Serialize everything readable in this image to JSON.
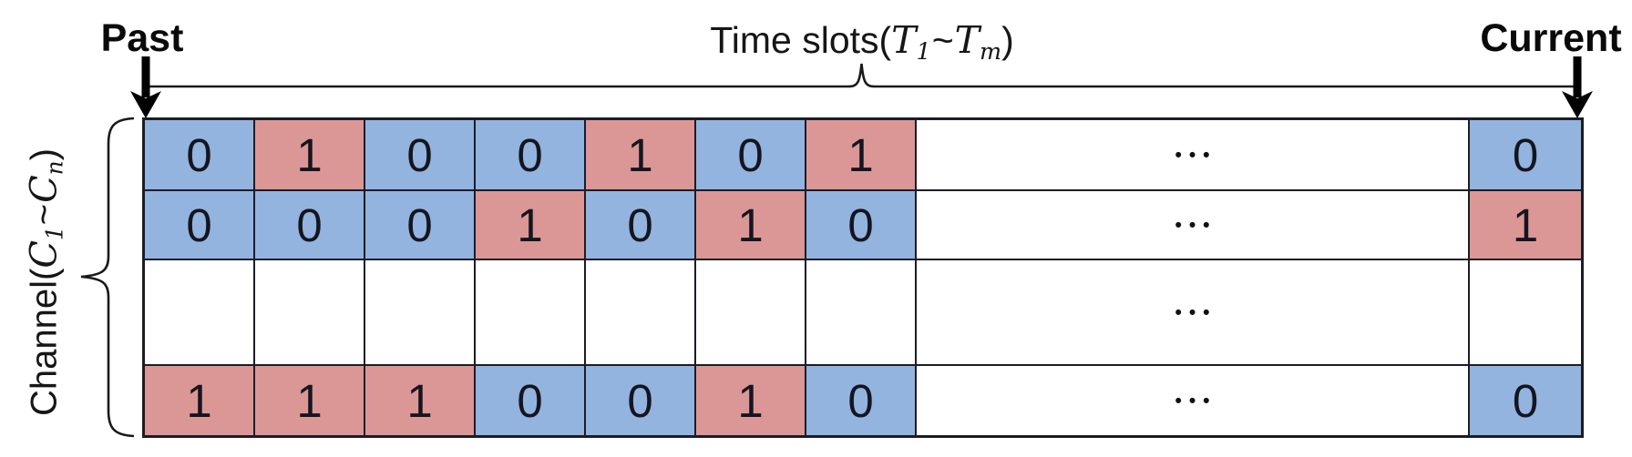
{
  "figure": {
    "past_label": "Past",
    "current_label": "Current",
    "time_axis": {
      "prefix": "Time slots(",
      "var1": "T",
      "sub1": "1",
      "tilde": "~",
      "var2": "T",
      "sub2": "m",
      "suffix": ")"
    },
    "channel_axis": {
      "prefix": "Channel(",
      "var1": "C",
      "sub1": "1",
      "tilde": "~",
      "var2": "C",
      "sub2": "n",
      "suffix": ")"
    }
  },
  "colors": {
    "idle": "#92b4df",
    "busy": "#db9795",
    "border": "#1c1c26",
    "digit": "#15151f",
    "line": "#1a1a1a",
    "arrow": "#000000"
  },
  "grid": {
    "rows": [
      {
        "name": "channel-row-1",
        "cells": [
          {
            "v": "0",
            "c": "idle"
          },
          {
            "v": "1",
            "c": "busy"
          },
          {
            "v": "0",
            "c": "idle"
          },
          {
            "v": "0",
            "c": "idle"
          },
          {
            "v": "1",
            "c": "busy"
          },
          {
            "v": "0",
            "c": "idle"
          },
          {
            "v": "1",
            "c": "busy"
          },
          {
            "v": "•••",
            "c": "plain"
          },
          {
            "v": "0",
            "c": "idle"
          }
        ]
      },
      {
        "name": "channel-row-2",
        "cells": [
          {
            "v": "0",
            "c": "idle"
          },
          {
            "v": "0",
            "c": "idle"
          },
          {
            "v": "0",
            "c": "idle"
          },
          {
            "v": "1",
            "c": "busy"
          },
          {
            "v": "0",
            "c": "idle"
          },
          {
            "v": "1",
            "c": "busy"
          },
          {
            "v": "0",
            "c": "idle"
          },
          {
            "v": "•••",
            "c": "plain"
          },
          {
            "v": "1",
            "c": "busy"
          }
        ]
      },
      {
        "name": "channel-row-ellipsis",
        "cells": [
          {
            "v": "",
            "c": "plain"
          },
          {
            "v": "",
            "c": "plain"
          },
          {
            "v": "",
            "c": "plain"
          },
          {
            "v": "",
            "c": "plain"
          },
          {
            "v": "",
            "c": "plain"
          },
          {
            "v": "",
            "c": "plain"
          },
          {
            "v": "",
            "c": "plain"
          },
          {
            "v": "•••",
            "c": "plain"
          },
          {
            "v": "",
            "c": "plain"
          }
        ]
      },
      {
        "name": "channel-row-n",
        "cells": [
          {
            "v": "1",
            "c": "busy"
          },
          {
            "v": "1",
            "c": "busy"
          },
          {
            "v": "1",
            "c": "busy"
          },
          {
            "v": "0",
            "c": "idle"
          },
          {
            "v": "0",
            "c": "idle"
          },
          {
            "v": "1",
            "c": "busy"
          },
          {
            "v": "0",
            "c": "idle"
          },
          {
            "v": "•••",
            "c": "plain"
          },
          {
            "v": "0",
            "c": "idle"
          }
        ]
      }
    ]
  }
}
